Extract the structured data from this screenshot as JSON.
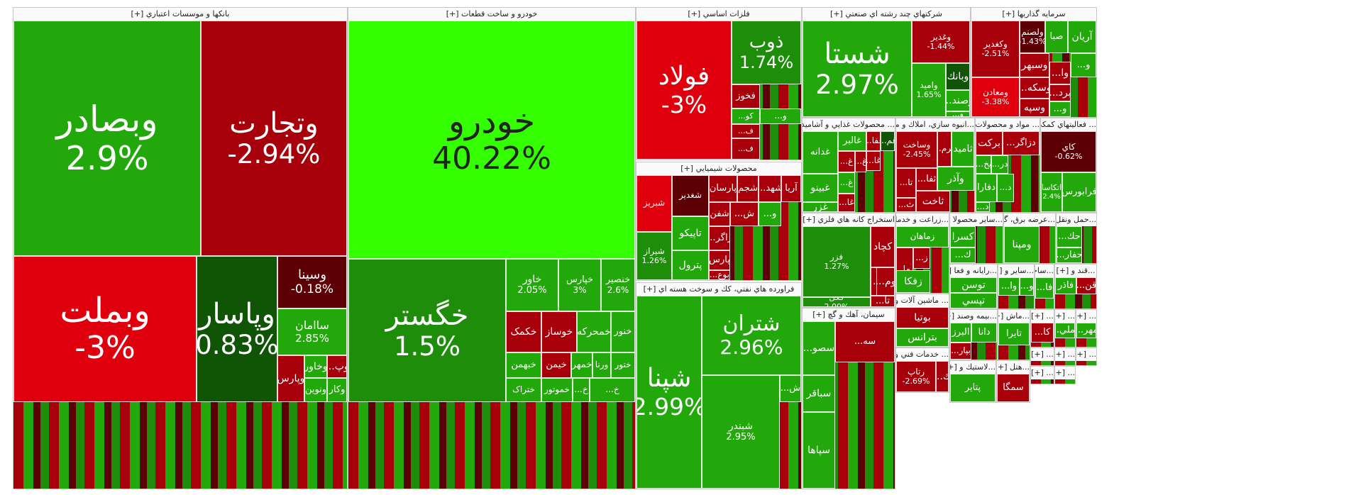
{
  "colors": {
    "strong_up": "#33ff00",
    "up": "#23a80c",
    "mid_up": "#1d8d0a",
    "deep_up": "#0f5505",
    "down": "#e0000d",
    "mid_down": "#a8000b",
    "deep_down": "#5c0006"
  },
  "chart_data": {
    "type": "treemap",
    "sectors": [
      {
        "name": "بانکها و موسسات اعتباري [+]",
        "tiles": [
          {
            "name": "وبصادر",
            "pct": "2.9%",
            "c": "up"
          },
          {
            "name": "وتجارت",
            "pct": "-2.94%",
            "c": "mid_down"
          },
          {
            "name": "وبملت",
            "pct": "-3%",
            "c": "down"
          },
          {
            "name": "وپاسار",
            "pct": "0.83%",
            "c": "deep_up"
          },
          {
            "name": "وسينا",
            "pct": "-0.18%",
            "c": "deep_down"
          },
          {
            "name": "ساامان",
            "pct": "2.85%",
            "c": "up"
          },
          {
            "name": "وپارس",
            "pct": "",
            "c": "mid_down"
          },
          {
            "name": "وخاور",
            "pct": "",
            "c": "up"
          },
          {
            "name": "...وپ",
            "pct": "",
            "c": "mid_down"
          },
          {
            "name": "ونوين",
            "pct": "",
            "c": "up"
          },
          {
            "name": "وكار",
            "pct": "",
            "c": "up"
          }
        ]
      },
      {
        "name": "خودرو و ساخت قطعات [+]",
        "tiles": [
          {
            "name": "خودرو",
            "pct": "40.22%",
            "c": "strong_up"
          },
          {
            "name": "خگستر",
            "pct": "1.5%",
            "c": "mid_up"
          },
          {
            "name": "خاور",
            "pct": "2.05%",
            "c": "up"
          },
          {
            "name": "خپارس",
            "pct": "3%",
            "c": "up"
          },
          {
            "name": "خنصير",
            "pct": "2.6%",
            "c": "up"
          },
          {
            "name": "خكمک",
            "pct": "",
            "c": "mid_down"
          },
          {
            "name": "خوساز",
            "pct": "",
            "c": "mid_down"
          },
          {
            "name": "خمحركه",
            "pct": "",
            "c": "up"
          },
          {
            "name": "خنور",
            "pct": "",
            "c": "up"
          },
          {
            "name": "خبهمن",
            "pct": "",
            "c": "up"
          },
          {
            "name": "خيمن",
            "pct": "",
            "c": "mid_down"
          },
          {
            "name": "خمهر",
            "pct": "",
            "c": "up"
          },
          {
            "name": "ورنا",
            "pct": "",
            "c": "up"
          },
          {
            "name": "ختور",
            "pct": "",
            "c": "up"
          },
          {
            "name": "خموتور",
            "pct": "",
            "c": "up"
          },
          {
            "name": "...خ",
            "pct": "",
            "c": "up"
          },
          {
            "name": "ختراک",
            "pct": "",
            "c": "up"
          },
          {
            "name": "خكرمان",
            "pct": "",
            "c": "up"
          },
          {
            "name": "...خ",
            "pct": "",
            "c": "up"
          }
        ]
      },
      {
        "name": "فلزات اساسي [+]",
        "tiles": [
          {
            "name": "فولاد",
            "pct": "-3%",
            "c": "down"
          },
          {
            "name": "ذوب",
            "pct": "1.74%",
            "c": "mid_up"
          },
          {
            "name": "فخوز",
            "pct": "",
            "c": "mid_down"
          },
          {
            "name": "...كو",
            "pct": "",
            "c": "up"
          },
          {
            "name": "...ف",
            "pct": "",
            "c": "mid_down"
          },
          {
            "name": "...ف",
            "pct": "",
            "c": "mid_down"
          },
          {
            "name": "...و",
            "pct": "",
            "c": "up"
          }
        ]
      },
      {
        "name": "محصولات شيميايي [+]",
        "tiles": [
          {
            "name": "شبریز",
            "pct": "",
            "c": "down"
          },
          {
            "name": "شغدير",
            "pct": "",
            "c": "deep_down"
          },
          {
            "name": "پارسان",
            "pct": "",
            "c": "mid_down"
          },
          {
            "name": "شجم",
            "pct": "",
            "c": "mid_down"
          },
          {
            "name": "...شهد",
            "pct": "",
            "c": "mid_down"
          },
          {
            "name": "آريا",
            "pct": "",
            "c": "mid_down"
          },
          {
            "name": "شفن",
            "pct": "",
            "c": "mid_down"
          },
          {
            "name": "...ش",
            "pct": "",
            "c": "mid_down"
          },
          {
            "name": "...و",
            "pct": "",
            "c": "up"
          },
          {
            "name": "تاپيكو",
            "pct": "",
            "c": "up"
          },
          {
            "name": "...زاگر",
            "pct": "",
            "c": "mid_down"
          },
          {
            "name": "شیراز",
            "pct": "1.26%",
            "c": "mid_up"
          },
          {
            "name": "پترول",
            "pct": "",
            "c": "up"
          },
          {
            "name": "پارس",
            "pct": "",
            "c": "mid_down"
          },
          {
            "name": "...بوع",
            "pct": "",
            "c": "mid_down"
          }
        ]
      },
      {
        "name": "فراورده هاي نفتي، كك و سوخت هسته اي [+]",
        "tiles": [
          {
            "name": "شپنا",
            "pct": "2.99%",
            "c": "up"
          },
          {
            "name": "شتران",
            "pct": "2.96%",
            "c": "up"
          },
          {
            "name": "شبندر",
            "pct": "2.95%",
            "c": "up"
          },
          {
            "name": "...ش",
            "pct": "",
            "c": "up"
          }
        ]
      },
      {
        "name": "شركتهاي چند رشته اي صنعتي [+]",
        "tiles": [
          {
            "name": "شستا",
            "pct": "2.97%",
            "c": "up"
          },
          {
            "name": "وغدير",
            "pct": "-1.44%",
            "c": "mid_down"
          },
          {
            "name": "وبانك",
            "pct": "",
            "c": "deep_up"
          },
          {
            "name": "وامید",
            "pct": "1.65%",
            "c": "up"
          },
          {
            "name": "...وصند",
            "pct": "",
            "c": "up"
          },
          {
            "name": "...و",
            "pct": "",
            "c": "up"
          }
        ]
      },
      {
        "name": "سرمايه گذاريها [+]",
        "tiles": [
          {
            "name": "آريان",
            "pct": "",
            "c": "up"
          },
          {
            "name": "صبا",
            "pct": "",
            "c": "up"
          },
          {
            "name": "ولصنم",
            "pct": "-1.43%",
            "c": "deep_down"
          },
          {
            "name": "وكغدير",
            "pct": "-2.51%",
            "c": "mid_down"
          },
          {
            "name": "وسبهر",
            "pct": "",
            "c": "mid_down"
          },
          {
            "name": "...و",
            "pct": "",
            "c": "up"
          },
          {
            "name": "...وا",
            "pct": "",
            "c": "mid_down"
          },
          {
            "name": "...وسكه",
            "pct": "",
            "c": "mid_down"
          },
          {
            "name": "...برد",
            "pct": "",
            "c": "mid_down"
          },
          {
            "name": "وسپه",
            "pct": "",
            "c": "mid_down"
          },
          {
            "name": "ومعادن",
            "pct": "-3.38%",
            "c": "down"
          },
          {
            "name": "...و",
            "pct": "",
            "c": "up"
          }
        ]
      },
      {
        "name": "... محصولات غذايي و آشاميدني [+]",
        "tiles": [
          {
            "name": "غالبر",
            "pct": "",
            "c": "up"
          },
          {
            "name": "...غفا",
            "pct": "",
            "c": "mid_down"
          },
          {
            "name": "...غم",
            "pct": "",
            "c": "deep_up"
          },
          {
            "name": "غدانه",
            "pct": "",
            "c": "up"
          },
          {
            "name": "...غ",
            "pct": "",
            "c": "mid_down"
          },
          {
            "name": "...غ",
            "pct": "",
            "c": "mid_down"
          },
          {
            "name": "...غا",
            "pct": "",
            "c": "mid_down"
          },
          {
            "name": "غبينو",
            "pct": "",
            "c": "up"
          },
          {
            "name": "...غ",
            "pct": "",
            "c": "up"
          },
          {
            "name": "غزر",
            "pct": "",
            "c": "up"
          },
          {
            "name": "...غا",
            "pct": "",
            "c": "mid_down"
          }
        ]
      },
      {
        "name": "...انبوه سازي، املاك و مس [+]",
        "tiles": [
          {
            "name": "وساخت",
            "pct": "-2.45%",
            "c": "mid_down"
          },
          {
            "name": "...كرم",
            "pct": "",
            "c": "mid_down"
          },
          {
            "name": "ثامید",
            "pct": "",
            "c": "up"
          },
          {
            "name": "...تا",
            "pct": "",
            "c": "mid_down"
          },
          {
            "name": "...ثفا",
            "pct": "",
            "c": "mid_down"
          },
          {
            "name": "وآذر",
            "pct": "",
            "c": "up"
          },
          {
            "name": "ثاخت",
            "pct": "",
            "c": "mid_down"
          },
          {
            "name": "...ث",
            "pct": "",
            "c": "mid_down"
          }
        ]
      },
      {
        "name": "... مواد و محصولات [+]",
        "tiles": [
          {
            "name": "بركت",
            "pct": "",
            "c": "mid_down"
          },
          {
            "name": "...دزاگر",
            "pct": "",
            "c": "mid_down"
          },
          {
            "name": "...بخ",
            "pct": "",
            "c": "up"
          },
          {
            "name": "...در",
            "pct": "",
            "c": "up"
          },
          {
            "name": "دفارا",
            "pct": "",
            "c": "up"
          },
          {
            "name": "...د",
            "pct": "",
            "c": "up"
          },
          {
            "name": "...د",
            "pct": "",
            "c": "up"
          }
        ]
      },
      {
        "name": "... فعاليتهاي كمكي [+]",
        "tiles": [
          {
            "name": "كاي",
            "pct": "-0.62%",
            "c": "deep_down"
          },
          {
            "name": "اتکاسا",
            "pct": "2.4%",
            "c": "up"
          },
          {
            "name": "فرابورس",
            "pct": "",
            "c": "up"
          }
        ]
      },
      {
        "name": "استخراج كانه هاي فلزي [+]",
        "tiles": [
          {
            "name": "فزر",
            "pct": "1.27%",
            "c": "mid_up"
          },
          {
            "name": "كچاد",
            "pct": "",
            "c": "mid_down"
          },
          {
            "name": "كاما",
            "pct": "",
            "c": "mid_down"
          },
          {
            "name": "...كر",
            "pct": "",
            "c": "mid_down"
          },
          {
            "name": "...وم",
            "pct": "",
            "c": "mid_down"
          },
          {
            "name": "کگل",
            "pct": "2.00%",
            "c": "mid_up"
          },
          {
            "name": "...تا",
            "pct": "",
            "c": "mid_down"
          }
        ]
      },
      {
        "name": "سيمان، آهك و گچ [+]",
        "tiles": [
          {
            "name": "...سه",
            "pct": "",
            "c": "mid_down"
          },
          {
            "name": "...سصو",
            "pct": "",
            "c": "up"
          },
          {
            "name": "سباقر",
            "pct": "",
            "c": "up"
          },
          {
            "name": "سپاها",
            "pct": "",
            "c": "up"
          }
        ]
      },
      {
        "name": "...زراعت و خدما [+]",
        "tiles": [
          {
            "name": "زماهان",
            "pct": "",
            "c": "up"
          },
          {
            "name": "...زما",
            "pct": "",
            "c": "mid_down"
          },
          {
            "name": "...ز",
            "pct": "",
            "c": "mid_down"
          },
          {
            "name": "زفكا",
            "pct": "",
            "c": "up"
          }
        ]
      },
      {
        "name": "... ماشين آلات و [+]",
        "tiles": [
          {
            "name": "بوتيا",
            "pct": "",
            "c": "mid_down"
          },
          {
            "name": "بترانس",
            "pct": "",
            "c": "up"
          }
        ]
      },
      {
        "name": "... خدمات فني و [+]",
        "tiles": [
          {
            "name": "رتاپ",
            "pct": "-2.69%",
            "c": "mid_down"
          },
          {
            "name": "...ك",
            "pct": "",
            "c": "mid_down"
          }
        ]
      },
      {
        "name": "...ساير محصولا [+]",
        "tiles": [
          {
            "name": "كسرا",
            "pct": "",
            "c": "up"
          },
          {
            "name": "...ك",
            "pct": "",
            "c": "up"
          }
        ]
      },
      {
        "name": "...عرضه برق، گا [+]",
        "tiles": [
          {
            "name": "ومپنا",
            "pct": "",
            "c": "up"
          }
        ]
      },
      {
        "name": "...حمل ونقل [+]",
        "tiles": [
          {
            "name": "...حك",
            "pct": "",
            "c": "up"
          },
          {
            "name": "...حفار",
            "pct": "",
            "c": "up"
          }
        ]
      },
      {
        "name": "...رايانه و فعا [+]",
        "tiles": [
          {
            "name": "توسن",
            "pct": "",
            "c": "up"
          },
          {
            "name": "تپسي",
            "pct": "",
            "c": "up"
          }
        ]
      },
      {
        "name": "...ساير و [+]",
        "tiles": [
          {
            "name": "...وا",
            "pct": "",
            "c": "up"
          },
          {
            "name": "...و",
            "pct": "",
            "c": "up"
          }
        ]
      },
      {
        "name": "...ساخت [+]",
        "tiles": [
          {
            "name": "...فا",
            "pct": "",
            "c": "up"
          }
        ]
      },
      {
        "name": "...قند و [+]",
        "tiles": [
          {
            "name": "فاذر",
            "pct": "",
            "c": "up"
          },
          {
            "name": "...قن",
            "pct": "",
            "c": "mid_down"
          }
        ]
      },
      {
        "name": "...بيمه وصند [+]",
        "tiles": [
          {
            "name": "البرز",
            "pct": "",
            "c": "up"
          },
          {
            "name": "دانا",
            "pct": "",
            "c": "up"
          },
          {
            "name": "...بپار",
            "pct": "",
            "c": "mid_down"
          }
        ]
      },
      {
        "name": "...ماش [+]",
        "tiles": [
          {
            "name": "تايرا",
            "pct": "",
            "c": "up"
          }
        ]
      },
      {
        "name": "... [+]",
        "tiles": [
          {
            "name": "...كا",
            "pct": "",
            "c": "mid_down"
          }
        ]
      },
      {
        "name": "... [+]",
        "tiles": [
          {
            "name": "...وملي",
            "pct": "",
            "c": "up"
          }
        ]
      },
      {
        "name": "... [+]",
        "tiles": [
          {
            "name": "...مهر",
            "pct": "",
            "c": "up"
          }
        ]
      },
      {
        "name": "...لاستيك و [+]",
        "tiles": [
          {
            "name": "پتاير",
            "pct": "",
            "c": "up"
          }
        ]
      },
      {
        "name": "...هتل [+]",
        "tiles": [
          {
            "name": "سمگا",
            "pct": "",
            "c": "mid_down"
          }
        ]
      },
      {
        "name": "... [+]",
        "tiles": []
      },
      {
        "name": "... [+]",
        "tiles": []
      },
      {
        "name": "... [+]",
        "tiles": []
      },
      {
        "name": "... [+]",
        "tiles": []
      },
      {
        "name": "... [+]",
        "tiles": []
      }
    ]
  }
}
